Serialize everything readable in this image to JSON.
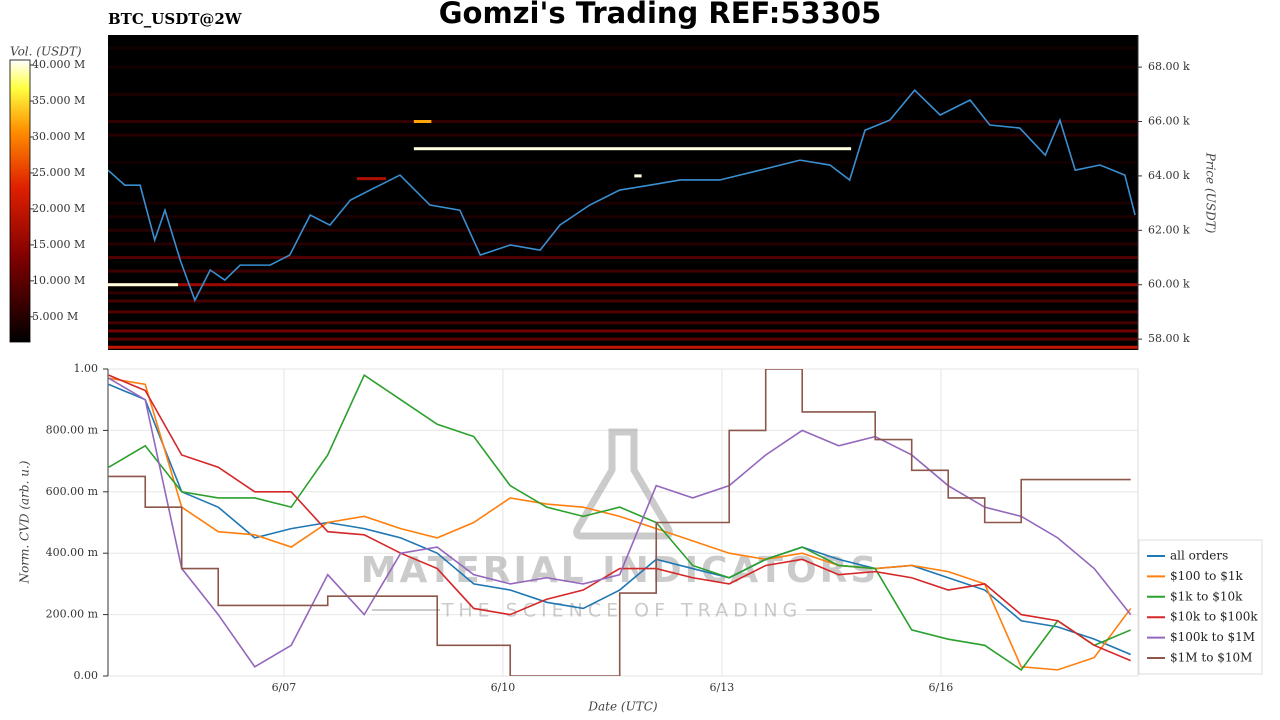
{
  "chart_data": [
    {
      "type": "heatmap",
      "title": "Gomzi's Trading REF:53305",
      "subtitle": "BTC_USDT@2W",
      "ylabel": "Price (USDT)",
      "xlim": [
        4.59,
        18.7
      ],
      "ylim": [
        57600,
        69180
      ],
      "yticks": [
        {
          "value": 58000,
          "label": "58.00 k"
        },
        {
          "value": 60000,
          "label": "60.00 k"
        },
        {
          "value": 62000,
          "label": "62.00 k"
        },
        {
          "value": 64000,
          "label": "64.00 k"
        },
        {
          "value": 66000,
          "label": "66.00 k"
        },
        {
          "value": 68000,
          "label": "68.00 k"
        }
      ],
      "colorbar": {
        "label": "Vol. (USDT)",
        "lim": [
          1.5,
          40.7
        ],
        "ticks": [
          {
            "value": 5,
            "label": "5.000 M"
          },
          {
            "value": 10,
            "label": "10.000 M"
          },
          {
            "value": 15,
            "label": "15.000 M"
          },
          {
            "value": 20,
            "label": "20.000 M"
          },
          {
            "value": 25,
            "label": "25.000 M"
          },
          {
            "value": 30,
            "label": "30.000 M"
          },
          {
            "value": 35,
            "label": "35.000 M"
          },
          {
            "value": 40,
            "label": "40.000 M"
          }
        ]
      },
      "heat_segments": [
        {
          "price": 57700,
          "start": 4.59,
          "end": 18.7,
          "volume": 20
        },
        {
          "price": 58000,
          "start": 4.59,
          "end": 18.7,
          "volume": 10
        },
        {
          "price": 58300,
          "start": 4.59,
          "end": 18.7,
          "volume": 12
        },
        {
          "price": 58600,
          "start": 4.59,
          "end": 18.7,
          "volume": 8
        },
        {
          "price": 59000,
          "start": 4.59,
          "end": 18.7,
          "volume": 9
        },
        {
          "price": 59400,
          "start": 4.59,
          "end": 18.7,
          "volume": 8
        },
        {
          "price": 59700,
          "start": 4.59,
          "end": 18.7,
          "volume": 6
        },
        {
          "price": 60000,
          "start": 4.59,
          "end": 18.7,
          "volume": 16
        },
        {
          "price": 60500,
          "start": 4.59,
          "end": 18.7,
          "volume": 7
        },
        {
          "price": 61000,
          "start": 4.59,
          "end": 18.7,
          "volume": 9
        },
        {
          "price": 61500,
          "start": 4.59,
          "end": 18.7,
          "volume": 5
        },
        {
          "price": 62000,
          "start": 4.59,
          "end": 18.7,
          "volume": 5
        },
        {
          "price": 62500,
          "start": 4.59,
          "end": 18.7,
          "volume": 4
        },
        {
          "price": 63000,
          "start": 4.59,
          "end": 18.7,
          "volume": 4
        },
        {
          "price": 64500,
          "start": 4.59,
          "end": 18.7,
          "volume": 3
        },
        {
          "price": 65500,
          "start": 4.59,
          "end": 18.7,
          "volume": 5
        },
        {
          "price": 66000,
          "start": 4.59,
          "end": 18.7,
          "volume": 6
        },
        {
          "price": 67000,
          "start": 4.59,
          "end": 18.7,
          "volume": 4
        },
        {
          "price": 68000,
          "start": 4.59,
          "end": 18.7,
          "volume": 3
        },
        {
          "price": 68700,
          "start": 4.59,
          "end": 18.7,
          "volume": 3
        },
        {
          "price": 63900,
          "start": 8.0,
          "end": 8.4,
          "volume": 18
        },
        {
          "price": 65000,
          "start": 8.78,
          "end": 14.77,
          "volume": 40
        },
        {
          "price": 60000,
          "start": 4.59,
          "end": 5.55,
          "volume": 40
        },
        {
          "price": 66000,
          "start": 8.78,
          "end": 9.02,
          "volume": 32
        },
        {
          "price": 64000,
          "start": 11.8,
          "end": 11.9,
          "volume": 40
        }
      ],
      "price_line": {
        "color": "#3a8fd0",
        "x": [
          4.59,
          4.82,
          5.03,
          5.23,
          5.37,
          5.58,
          5.78,
          5.99,
          6.19,
          6.4,
          6.81,
          7.08,
          7.36,
          7.63,
          7.91,
          8.18,
          8.59,
          9.0,
          9.41,
          9.69,
          10.1,
          10.51,
          10.78,
          11.19,
          11.6,
          12.01,
          12.43,
          12.97,
          13.52,
          14.07,
          14.48,
          14.75,
          14.96,
          15.3,
          15.64,
          15.99,
          16.4,
          16.67,
          17.08,
          17.43,
          17.63,
          17.84,
          18.18,
          18.52,
          18.66
        ],
        "values": [
          64210,
          63660,
          63660,
          61640,
          62740,
          60900,
          59430,
          60540,
          60170,
          60720,
          60720,
          61090,
          62560,
          62190,
          63110,
          63480,
          64030,
          62930,
          62740,
          61090,
          61460,
          61270,
          62190,
          62930,
          63480,
          63660,
          63850,
          63850,
          64210,
          64580,
          64400,
          63850,
          65680,
          66050,
          67150,
          66240,
          66790,
          65870,
          65760,
          64760,
          66050,
          64210,
          64400,
          64030,
          62560
        ]
      }
    },
    {
      "type": "line",
      "xlabel": "Date (UTC)",
      "ylabel": "Norm. CVD (arb. u.)",
      "xlim": [
        4.59,
        18.7
      ],
      "xticks": [
        {
          "value": 7,
          "label": "6/07"
        },
        {
          "value": 10,
          "label": "6/10"
        },
        {
          "value": 13,
          "label": "6/13"
        },
        {
          "value": 16,
          "label": "6/16"
        }
      ],
      "ylim": [
        0,
        1
      ],
      "yticks": [
        {
          "value": 0,
          "label": "0.00"
        },
        {
          "value": 0.2,
          "label": "200.00 m"
        },
        {
          "value": 0.4,
          "label": "400.00 m"
        },
        {
          "value": 0.6,
          "label": "600.00 m"
        },
        {
          "value": 0.8,
          "label": "800.00 m"
        },
        {
          "value": 1,
          "label": "1.00"
        }
      ],
      "grid": true,
      "legend": "lower right",
      "watermark": {
        "title": "MATERIAL INDICATORS",
        "subtitle": "THE SCIENCE OF TRADING"
      },
      "x": [
        4.6,
        5.1,
        5.6,
        6.1,
        6.6,
        7.1,
        7.6,
        8.1,
        8.6,
        9.1,
        9.6,
        10.1,
        10.6,
        11.1,
        11.6,
        12.1,
        12.6,
        13.1,
        13.6,
        14.1,
        14.6,
        15.1,
        15.6,
        16.1,
        16.6,
        17.1,
        17.6,
        18.1,
        18.6
      ],
      "series": [
        {
          "name": "all orders",
          "color": "#1f77b4",
          "values": [
            0.95,
            0.9,
            0.6,
            0.55,
            0.45,
            0.48,
            0.5,
            0.48,
            0.45,
            0.4,
            0.3,
            0.28,
            0.24,
            0.22,
            0.28,
            0.38,
            0.35,
            0.32,
            0.38,
            0.42,
            0.38,
            0.35,
            0.36,
            0.32,
            0.28,
            0.18,
            0.16,
            0.12,
            0.07
          ]
        },
        {
          "name": "$100 to $1k",
          "color": "#ff7f0e",
          "values": [
            0.97,
            0.95,
            0.55,
            0.47,
            0.46,
            0.42,
            0.5,
            0.52,
            0.48,
            0.45,
            0.5,
            0.58,
            0.56,
            0.55,
            0.52,
            0.48,
            0.44,
            0.4,
            0.38,
            0.4,
            0.36,
            0.35,
            0.36,
            0.34,
            0.3,
            0.03,
            0.02,
            0.06,
            0.22
          ]
        },
        {
          "name": "$1k to $10k",
          "color": "#2ca02c",
          "values": [
            0.68,
            0.75,
            0.6,
            0.58,
            0.58,
            0.55,
            0.72,
            0.98,
            0.9,
            0.82,
            0.78,
            0.62,
            0.55,
            0.52,
            0.55,
            0.5,
            0.36,
            0.32,
            0.38,
            0.42,
            0.36,
            0.35,
            0.15,
            0.12,
            0.1,
            0.02,
            0.18,
            0.1,
            0.15
          ]
        },
        {
          "name": "$10k to $100k",
          "color": "#d62728",
          "values": [
            0.98,
            0.93,
            0.72,
            0.68,
            0.6,
            0.6,
            0.47,
            0.46,
            0.4,
            0.35,
            0.22,
            0.2,
            0.25,
            0.28,
            0.35,
            0.35,
            0.32,
            0.3,
            0.36,
            0.38,
            0.33,
            0.34,
            0.32,
            0.28,
            0.3,
            0.2,
            0.18,
            0.1,
            0.05
          ]
        },
        {
          "name": "$100k to $1M",
          "color": "#9467bd",
          "values": [
            0.97,
            0.9,
            0.35,
            0.2,
            0.03,
            0.1,
            0.33,
            0.2,
            0.4,
            0.42,
            0.33,
            0.3,
            0.32,
            0.3,
            0.33,
            0.62,
            0.58,
            0.62,
            0.72,
            0.8,
            0.75,
            0.78,
            0.72,
            0.62,
            0.55,
            0.52,
            0.45,
            0.35,
            0.2
          ]
        },
        {
          "name": "$1M to $10M",
          "color": "#8c564b",
          "drawstyle": "steps-post",
          "values": [
            0.65,
            0.55,
            0.35,
            0.23,
            0.23,
            0.23,
            0.26,
            0.26,
            0.26,
            0.1,
            0.1,
            0.0,
            0.0,
            0.0,
            0.27,
            0.5,
            0.5,
            0.8,
            1.0,
            0.86,
            0.86,
            0.77,
            0.67,
            0.58,
            0.5,
            0.64,
            0.64,
            0.64,
            0.64
          ]
        }
      ]
    }
  ]
}
